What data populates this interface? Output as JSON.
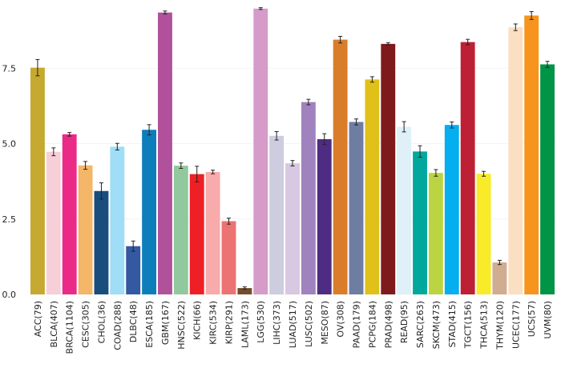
{
  "chart_data": {
    "type": "bar",
    "title": "",
    "xlabel": "",
    "ylabel": "",
    "ylim": [
      0,
      9.5
    ],
    "yticks": [
      0.0,
      2.5,
      5.0,
      7.5
    ],
    "ytick_labels": [
      "0.0",
      "2.5",
      "5.0",
      "7.5"
    ],
    "grid": true,
    "error_bars": true,
    "categories": [
      "ACC(79)",
      "BLCA(407)",
      "BRCA(1104)",
      "CESC(305)",
      "CHOL(36)",
      "COAD(288)",
      "DLBC(48)",
      "ESCA(185)",
      "GBM(167)",
      "HNSC(522)",
      "KICH(66)",
      "KIRC(534)",
      "KIRP(291)",
      "LAML(173)",
      "LGG(530)",
      "LIHC(373)",
      "LUAD(517)",
      "LUSC(502)",
      "MESO(87)",
      "OV(308)",
      "PAAD(179)",
      "PCPG(184)",
      "PRAD(498)",
      "READ(95)",
      "SARC(263)",
      "SKCM(473)",
      "STAD(415)",
      "TGCT(156)",
      "THCA(513)",
      "THYM(120)",
      "UCEC(177)",
      "UCS(57)",
      "UVM(80)"
    ],
    "values": [
      7.52,
      4.73,
      5.31,
      4.28,
      3.43,
      4.9,
      1.6,
      5.46,
      9.35,
      4.27,
      3.99,
      4.06,
      2.43,
      0.21,
      9.48,
      5.26,
      4.35,
      6.38,
      5.15,
      8.45,
      5.72,
      7.13,
      8.31,
      5.56,
      4.74,
      4.03,
      5.62,
      8.37,
      4.0,
      1.06,
      8.86,
      9.25,
      7.63
    ],
    "errors": [
      0.27,
      0.13,
      0.06,
      0.13,
      0.27,
      0.11,
      0.17,
      0.17,
      0.05,
      0.09,
      0.26,
      0.06,
      0.1,
      0.04,
      0.03,
      0.14,
      0.09,
      0.09,
      0.18,
      0.11,
      0.1,
      0.09,
      0.04,
      0.17,
      0.19,
      0.11,
      0.1,
      0.09,
      0.08,
      0.07,
      0.11,
      0.13,
      0.1
    ],
    "colors": [
      "#C5A930",
      "#F7CFD8",
      "#EB2A87",
      "#F4B668",
      "#194D7D",
      "#A0DDF6",
      "#3558A2",
      "#0E7EBB",
      "#B1519B",
      "#91C89D",
      "#EE2025",
      "#F7ABAB",
      "#EB7473",
      "#754C2A",
      "#D59BC9",
      "#CDCDDF",
      "#D9C8E1",
      "#A083BE",
      "#4F2C83",
      "#D97D2A",
      "#6E7EA2",
      "#E1C119",
      "#7E1A1C",
      "#DFF0F9",
      "#00A79D",
      "#BDD442",
      "#05AEEF",
      "#BD2034",
      "#F9EB27",
      "#D0AC90",
      "#FADFC2",
      "#F7941D",
      "#009447"
    ]
  }
}
